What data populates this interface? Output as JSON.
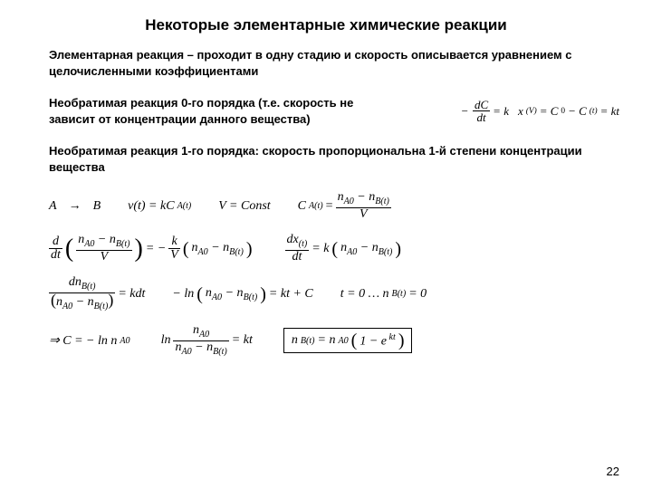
{
  "title": "Некоторые элементарные химические реакции",
  "intro": "Элементарная реакция – проходит в одну стадию и скорость описывается уравнением с целочисленными коэффициентами",
  "zero_order_text": "Необратимая реакция 0-го порядка (т.е. скорость не зависит от концентрации данного вещества)",
  "first_order_text": "Необратимая реакция 1-го порядка: скорость пропорциональна 1-й степени концентрации вещества",
  "eq": {
    "minus": "−",
    "dC": "dC",
    "dt": "dt",
    "eqk": "= k",
    "xV": "x",
    "Vsub": "(V)",
    "C0Ct": "= C",
    "zero": "0",
    "minusC": "− C",
    "t": "(t)",
    "eqkt": "= kt",
    "A": "A",
    "to": "→",
    "B": "B",
    "vtk": "v(t) = kC",
    "Asub": "A(t)",
    "Vconst": "V = Const",
    "CA": "C",
    "CAtnum": "n",
    "A0": "A0",
    "minusn": "− n",
    "Bt": "B(t)",
    "V": "V",
    "ddt": "d",
    "km": "= −",
    "k": "k",
    "lpar": "(",
    "rpar": ")",
    "dxdt": "dx",
    "eqkn": "= k",
    "dn": "dn",
    "eqkdt": "= kdt",
    "mln": "− ln",
    "ktC": "= kt + C",
    "t0": "t = 0 …  n",
    "eqz": "= 0",
    "imp": "⇒ C = − ln n",
    "ln": "ln",
    "nA0": "n",
    "eqkt2": "= kt",
    "nB": "n",
    "eqnA": "= n",
    "one_e": "1 − e",
    "mkt": " kt"
  },
  "page_number": "22",
  "style": {
    "background": "#ffffff",
    "text_color": "#000000",
    "title_fontsize": 17,
    "body_fontsize": 13,
    "math_font": "Times New Roman"
  }
}
